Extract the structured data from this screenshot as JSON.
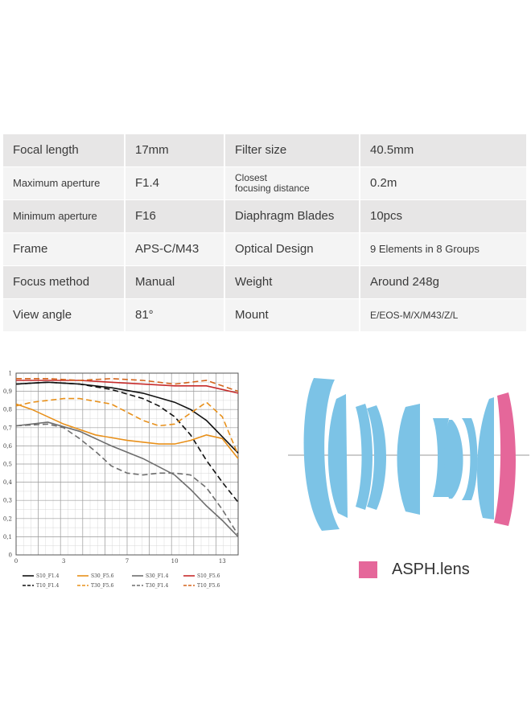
{
  "specs": {
    "rows": [
      {
        "label1": "Focal length",
        "value1": "17mm",
        "label2": "Filter size",
        "value2": "40.5mm"
      },
      {
        "label1": "Maximum aperture",
        "value1": "F1.4",
        "label2_line1": "Closest",
        "label2_line2": "focusing distance",
        "value2": "0.2m"
      },
      {
        "label1": "Minimum aperture",
        "value1": "F16",
        "label2": "Diaphragm Blades",
        "value2": "10pcs"
      },
      {
        "label1": "Frame",
        "value1": "APS-C/M43",
        "label2": "Optical Design",
        "value2": "9 Elements in 8 Groups"
      },
      {
        "label1": "Focus method",
        "value1": "Manual",
        "label2": "Weight",
        "value2": "Around 248g"
      },
      {
        "label1": "View angle",
        "value1": "81°",
        "label2": "Mount",
        "value2": "E/EOS-M/X/M43/Z/L"
      }
    ]
  },
  "chart_data": {
    "type": "line",
    "xlim": [
      0,
      14
    ],
    "ylim": [
      0,
      1
    ],
    "x_ticks": [
      "0",
      "3",
      "7",
      "10",
      "13"
    ],
    "x_tick_values": [
      0,
      3,
      7,
      10,
      13
    ],
    "y_ticks": [
      "0",
      "0,1",
      "0,2",
      "0,3",
      "0,4",
      "0,5",
      "0,6",
      "0,7",
      "0,8",
      "0,9",
      "1"
    ],
    "y_tick_values": [
      0,
      0.1,
      0.2,
      0.3,
      0.4,
      0.5,
      0.6,
      0.7,
      0.8,
      0.9,
      1.0
    ],
    "grid": true,
    "legend_position": "bottom",
    "series": [
      {
        "name": "S10_F1.4",
        "color": "#111111",
        "dash": "solid",
        "x": [
          0,
          2,
          4,
          6,
          8,
          10,
          11,
          12,
          13,
          14
        ],
        "y": [
          0.94,
          0.95,
          0.94,
          0.92,
          0.89,
          0.84,
          0.8,
          0.74,
          0.65,
          0.56
        ]
      },
      {
        "name": "T10_F1.4",
        "color": "#111111",
        "dash": "dashed",
        "x": [
          0,
          2,
          4,
          6,
          8,
          9,
          10,
          11,
          12,
          13,
          14
        ],
        "y": [
          0.94,
          0.95,
          0.94,
          0.91,
          0.86,
          0.82,
          0.76,
          0.66,
          0.52,
          0.4,
          0.29
        ]
      },
      {
        "name": "S30_F5.6",
        "color": "#e8901a",
        "dash": "solid",
        "x": [
          0,
          1,
          3,
          5,
          7,
          9,
          10,
          11,
          12,
          13,
          14
        ],
        "y": [
          0.83,
          0.8,
          0.72,
          0.66,
          0.63,
          0.61,
          0.61,
          0.63,
          0.66,
          0.64,
          0.53
        ]
      },
      {
        "name": "T30_F5.6",
        "color": "#e8901a",
        "dash": "dashed",
        "x": [
          0,
          1,
          3,
          4,
          6,
          8,
          9,
          10,
          11,
          12,
          13,
          14
        ],
        "y": [
          0.82,
          0.84,
          0.86,
          0.86,
          0.83,
          0.74,
          0.71,
          0.72,
          0.78,
          0.84,
          0.76,
          0.55
        ]
      },
      {
        "name": "S30_F1.4",
        "color": "#6e6e6e",
        "dash": "solid",
        "x": [
          0,
          2,
          4,
          6,
          8,
          10,
          11,
          12,
          13,
          14
        ],
        "y": [
          0.71,
          0.73,
          0.68,
          0.6,
          0.53,
          0.44,
          0.36,
          0.27,
          0.19,
          0.1
        ]
      },
      {
        "name": "T30_F1.4",
        "color": "#6e6e6e",
        "dash": "dashed",
        "x": [
          0,
          2,
          3,
          4,
          5,
          6,
          7,
          8,
          9,
          10,
          11,
          12,
          13,
          14
        ],
        "y": [
          0.71,
          0.72,
          0.7,
          0.64,
          0.57,
          0.49,
          0.45,
          0.44,
          0.45,
          0.45,
          0.44,
          0.37,
          0.25,
          0.11
        ]
      },
      {
        "name": "S10_F5.6",
        "color": "#c62b2b",
        "dash": "solid",
        "x": [
          0,
          2,
          4,
          6,
          8,
          10,
          12,
          13,
          14
        ],
        "y": [
          0.96,
          0.96,
          0.96,
          0.95,
          0.94,
          0.93,
          0.93,
          0.91,
          0.89
        ]
      },
      {
        "name": "T10_F5.6",
        "color": "#d4641c",
        "dash": "dashed",
        "x": [
          0,
          2,
          4,
          6,
          8,
          10,
          12,
          13,
          14
        ],
        "y": [
          0.97,
          0.97,
          0.96,
          0.97,
          0.96,
          0.94,
          0.96,
          0.93,
          0.9
        ]
      }
    ]
  },
  "lens": {
    "element_color": "#7cc3e6",
    "asph_color": "#e5679a",
    "asph_label": "ASPH.lens"
  }
}
